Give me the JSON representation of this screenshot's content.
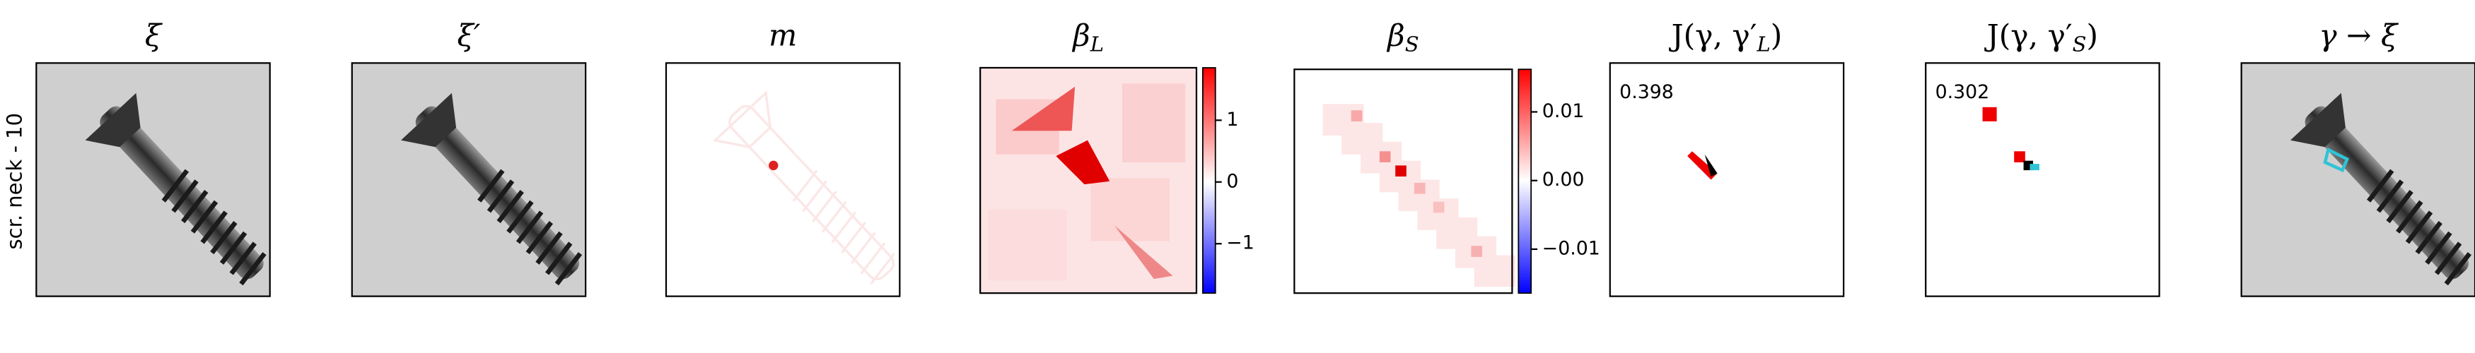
{
  "row_label": "scr. neck - 10",
  "panels": [
    {
      "title": [
        {
          "text": "ξ"
        }
      ]
    },
    {
      "title": [
        {
          "text": "ξ′"
        }
      ]
    },
    {
      "title": [
        {
          "text": "m"
        }
      ]
    },
    {
      "title": [
        {
          "text": "β"
        },
        {
          "text": "L",
          "sub": true
        }
      ],
      "colorbar": {
        "clim": [
          -1.8,
          1.85
        ],
        "ticks": [
          1,
          0,
          {
            "value": -1,
            "label": "−1"
          }
        ],
        "colors": [
          "#0000ff",
          "#ffffff",
          "#ff0000"
        ]
      }
    },
    {
      "title": [
        {
          "text": "β"
        },
        {
          "text": "S",
          "sub": true
        }
      ],
      "colorbar": {
        "clim": [
          -0.0164,
          0.0162
        ],
        "ticks": [
          0.01,
          {
            "value": 0,
            "label": "0.00"
          },
          {
            "value": -0.01,
            "label": "−0.01"
          }
        ],
        "colors": [
          "#0000ff",
          "#ffffff",
          "#ff0000"
        ]
      }
    },
    {
      "title": [
        {
          "text": "J(γ, γ′"
        },
        {
          "text": "L",
          "sub": true
        },
        {
          "text": ")"
        }
      ],
      "annotation": "0.398"
    },
    {
      "title": [
        {
          "text": "J(γ, γ′"
        },
        {
          "text": "S",
          "sub": true
        },
        {
          "text": ")"
        }
      ],
      "annotation": "0.302"
    },
    {
      "title": [
        {
          "text": "γ → ξ"
        }
      ]
    }
  ]
}
